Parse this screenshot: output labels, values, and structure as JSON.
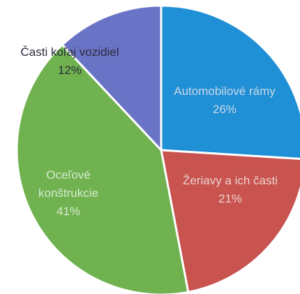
{
  "chart_data": {
    "type": "pie",
    "categories": [
      "Automobilové rámy",
      "Žeriavy a ich časti",
      "Oceľové konštrukcie",
      "Časti koľaj vozidiel"
    ],
    "values": [
      26,
      21,
      41,
      12
    ],
    "value_labels": [
      "26%",
      "21%",
      "41%",
      "12%"
    ],
    "colors": [
      "#1f8fd6",
      "#c8534f",
      "#6fb24f",
      "#6a74c6"
    ]
  }
}
